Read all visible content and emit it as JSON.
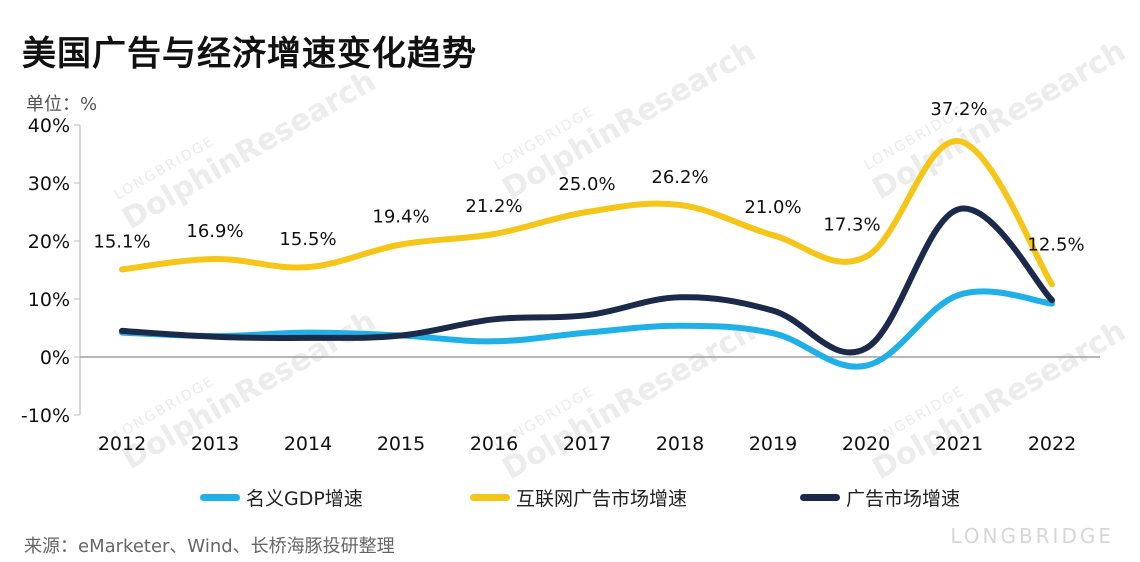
{
  "title": "美国广告与经济增速变化趋势",
  "unit_label": "单位：%",
  "source": "来源：eMarketer、Wind、长桥海豚投研整理",
  "watermark": {
    "main": "DolphinResearch",
    "sub": "LONGBRIDGE"
  },
  "brand": "LONGBRIDGE",
  "chart_data": {
    "type": "line",
    "categories": [
      "2012",
      "2013",
      "2014",
      "2015",
      "2016",
      "2017",
      "2018",
      "2019",
      "2020",
      "2021",
      "2022"
    ],
    "ylim": [
      -10,
      40
    ],
    "yticks": [
      -10,
      0,
      10,
      20,
      30,
      40
    ],
    "ytick_labels": [
      "-10%",
      "0%",
      "10%",
      "20%",
      "30%",
      "40%"
    ],
    "grid": false,
    "legend_position": "bottom",
    "series": [
      {
        "name": "名义GDP增速",
        "color": "#1fb0e8",
        "values": [
          4.2,
          3.6,
          4.2,
          3.7,
          2.7,
          4.2,
          5.4,
          4.1,
          -1.5,
          10.7,
          9.2
        ]
      },
      {
        "name": "互联网广告市场增速",
        "color": "#f5c518",
        "values": [
          15.1,
          16.9,
          15.5,
          19.4,
          21.2,
          25.0,
          26.2,
          21.0,
          17.3,
          37.2,
          12.5
        ],
        "data_labels": [
          "15.1%",
          "16.9%",
          "15.5%",
          "19.4%",
          "21.2%",
          "25.0%",
          "26.2%",
          "21.0%",
          "17.3%",
          "37.2%",
          "12.5%"
        ]
      },
      {
        "name": "广告市场增速",
        "color": "#1b2a4a",
        "values": [
          4.5,
          3.5,
          3.3,
          3.7,
          6.5,
          7.2,
          10.3,
          8.0,
          1.5,
          25.5,
          9.8
        ]
      }
    ]
  }
}
